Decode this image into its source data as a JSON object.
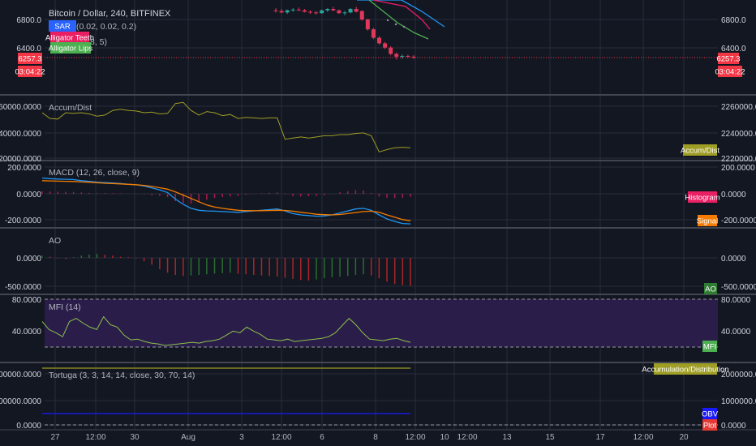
{
  "header": {
    "symbol": "Bitcoin / Dollar, 240, BITFINEX",
    "sar_tag": "SAR",
    "sar_params": "(0.02, 0.02, 0.2)",
    "teeth_tag": "Alligator Teeth",
    "lips_tag": "Alligator Lips",
    "alligator_params": "(13, 8, 5)"
  },
  "price_badges": {
    "last_price": "6257.3",
    "countdown": "03:04:22"
  },
  "colors": {
    "background": "#131722",
    "grid": "#2a2e39",
    "separator": "#434651",
    "up": "#26a69a",
    "down": "#ef5350",
    "candle_down": "#e0375a",
    "price_tag": "#f23645",
    "sar_tag": "#2962ff",
    "teeth": "#e91e63",
    "lips": "#4caf50",
    "jaw": "#2196f3",
    "accdist": "#9e9d24",
    "macd": "#2196f3",
    "signal": "#f57c00",
    "histogram": "#e91e63",
    "ao": "#2e7d32",
    "mfi": "#8bc34a",
    "mfi_band": "#2b1d4a",
    "obv": "#1a1aff",
    "plot": "#e53935"
  },
  "panes": {
    "price": {
      "right_ticks": [
        "6800.0",
        "6400.0"
      ],
      "left_ticks": [
        "6800.0",
        "6400.0"
      ]
    },
    "accdist": {
      "label": "Accum/Dist",
      "tag": "Accum/Dist",
      "ticks": [
        "2260000.0000",
        "2240000.0000",
        "2220000.0000"
      ]
    },
    "macd": {
      "label": "MACD (12, 26, close, 9)",
      "tags": {
        "histogram": "Histogram",
        "signal": "Signal"
      },
      "ticks": [
        "200.0000",
        "0.0000",
        "-200.0000"
      ]
    },
    "ao": {
      "label": "AO",
      "tag": "AO",
      "ticks": [
        "0.0000",
        "-500.0000"
      ]
    },
    "mfi": {
      "label": "MFI (14)",
      "tag": "MFI",
      "ticks": [
        "80.0000",
        "40.0000"
      ]
    },
    "tortuga": {
      "label": "Tortuga (3, 3, 14, 14, close, 30, 70, 14)",
      "tags": {
        "accumulation": "Accumulation/Distribution",
        "obv": "OBV",
        "plot": "Plot"
      },
      "ticks": [
        "2000000.0000",
        "1000000.0000",
        "0.0000"
      ]
    }
  },
  "x_axis": {
    "labels": [
      "27",
      "12:00",
      "30",
      "Aug",
      "3",
      "12:00",
      "6",
      "8",
      "12:00",
      "10",
      "12:00",
      "13",
      "15",
      "17",
      "12:00",
      "20"
    ]
  },
  "chart_data": [
    {
      "type": "candlestick",
      "title": "Bitcoin / Dollar, 240, BITFINEX",
      "ylim": [
        6200,
        7000
      ],
      "series": [
        {
          "name": "Price",
          "ohlc_visible_end": [
            [
              6930,
              6960,
              6900,
              6920
            ],
            [
              6920,
              6950,
              6890,
              6900
            ],
            [
              6900,
              6940,
              6880,
              6930
            ],
            [
              6930,
              6960,
              6910,
              6940
            ],
            [
              6940,
              6970,
              6920,
              6930
            ],
            [
              6930,
              6950,
              6900,
              6910
            ],
            [
              6910,
              6930,
              6880,
              6900
            ],
            [
              6900,
              6920,
              6870,
              6890
            ],
            [
              6890,
              6940,
              6880,
              6930
            ],
            [
              6930,
              6960,
              6910,
              6950
            ],
            [
              6950,
              6980,
              6920,
              6930
            ],
            [
              6930,
              6940,
              6880,
              6890
            ],
            [
              6890,
              6920,
              6860,
              6900
            ],
            [
              6900,
              6960,
              6890,
              6950
            ],
            [
              6950,
              6980,
              6900,
              6910
            ],
            [
              6920,
              6930,
              6780,
              6800
            ],
            [
              6800,
              6810,
              6640,
              6660
            ],
            [
              6660,
              6680,
              6520,
              6540
            ],
            [
              6540,
              6560,
              6440,
              6460
            ],
            [
              6460,
              6480,
              6380,
              6400
            ],
            [
              6400,
              6420,
              6290,
              6310
            ],
            [
              6310,
              6330,
              6230,
              6270
            ],
            [
              6270,
              6300,
              6240,
              6280
            ],
            [
              6280,
              6300,
              6250,
              6270
            ],
            [
              6270,
              6290,
              6240,
              6257.3
            ]
          ]
        }
      ],
      "last_price": 6257.3
    },
    {
      "type": "line",
      "title": "Accum/Dist",
      "ylim": [
        2218000,
        2268000
      ],
      "series": [
        {
          "name": "Accum/Dist",
          "values": [
            2256000,
            2251000,
            2250500,
            2256000,
            2255500,
            2256000,
            2255000,
            2253000,
            2254000,
            2258000,
            2259000,
            2258000,
            2257500,
            2256000,
            2256500,
            2255000,
            2255500,
            2264000,
            2265000,
            2258000,
            2254000,
            2257000,
            2256000,
            2253500,
            2254500,
            2251000,
            2252000,
            2251500,
            2251000,
            2251500,
            2251500,
            2233000,
            2234000,
            2235000,
            2234000,
            2235000,
            2236000,
            2236000,
            2237000,
            2237000,
            2238000,
            2238500,
            2236000,
            2222000,
            2224000,
            2225500,
            2226000,
            2225500
          ]
        }
      ]
    },
    {
      "type": "line",
      "title": "MACD (12, 26, close, 9)",
      "ylim": [
        -250,
        220
      ],
      "series": [
        {
          "name": "MACD",
          "values": [
            120,
            115,
            112,
            110,
            108,
            100,
            95,
            88,
            85,
            82,
            78,
            72,
            68,
            60,
            45,
            30,
            10,
            -40,
            -80,
            -110,
            -125,
            -130,
            -132,
            -135,
            -138,
            -140,
            -135,
            -130,
            -125,
            -120,
            -115,
            -130,
            -150,
            -160,
            -165,
            -170,
            -168,
            -160,
            -145,
            -130,
            -115,
            -110,
            -125,
            -160,
            -190,
            -210,
            -225,
            -228
          ]
        },
        {
          "name": "Signal",
          "values": [
            100,
            98,
            96,
            95,
            94,
            90,
            88,
            84,
            80,
            78,
            75,
            72,
            69,
            64,
            56,
            46,
            35,
            15,
            -10,
            -35,
            -60,
            -85,
            -100,
            -110,
            -118,
            -125,
            -128,
            -128,
            -128,
            -127,
            -125,
            -126,
            -132,
            -140,
            -147,
            -155,
            -158,
            -160,
            -157,
            -150,
            -142,
            -135,
            -132,
            -140,
            -160,
            -178,
            -195,
            -205
          ]
        },
        {
          "name": "Histogram",
          "values": [
            20,
            17,
            16,
            15,
            14,
            10,
            7,
            4,
            5,
            4,
            3,
            0,
            -1,
            -4,
            -11,
            -16,
            -25,
            -55,
            -70,
            -75,
            -65,
            -45,
            -32,
            -25,
            -20,
            -15,
            -7,
            -2,
            3,
            7,
            10,
            -4,
            -18,
            -20,
            -18,
            -15,
            -10,
            0,
            12,
            20,
            27,
            25,
            7,
            -20,
            -30,
            -32,
            -30,
            -23
          ]
        }
      ]
    },
    {
      "type": "bar",
      "title": "AO",
      "ylim": [
        -600,
        100
      ],
      "series": [
        {
          "name": "AO",
          "values": [
            40,
            20,
            -10,
            -20,
            10,
            40,
            60,
            70,
            55,
            40,
            20,
            10,
            -10,
            -60,
            -120,
            -200,
            -260,
            -300,
            -320,
            -310,
            -300,
            -290,
            -280,
            -270,
            -260,
            -280,
            -290,
            -300,
            -310,
            -320,
            -330,
            -350,
            -370,
            -390,
            -400,
            -380,
            -360,
            -340,
            -330,
            -320,
            -300,
            -290,
            -310,
            -360,
            -420,
            -460,
            -480,
            -490
          ]
        }
      ]
    },
    {
      "type": "line",
      "title": "MFI (14)",
      "ylim": [
        15,
        85
      ],
      "series": [
        {
          "name": "MFI",
          "values": [
            52,
            42,
            38,
            33,
            52,
            56,
            50,
            45,
            42,
            58,
            48,
            45,
            35,
            29,
            30,
            27,
            25,
            24,
            22,
            23,
            24,
            25,
            26,
            25,
            27,
            28,
            30,
            35,
            40,
            38,
            45,
            40,
            36,
            30,
            29,
            28,
            30,
            27,
            28,
            29,
            30,
            31,
            33,
            38,
            47,
            56,
            48,
            38,
            30,
            29,
            28,
            30,
            31,
            28,
            26
          ]
        }
      ],
      "bands": [
        80,
        20
      ]
    },
    {
      "type": "line",
      "title": "Tortuga (3, 3, 14, 14, close, 30, 70, 14)",
      "ylim": [
        -100000,
        2200000
      ],
      "series": [
        {
          "name": "Accumulation/Distribution",
          "values": [
            2240000,
            2240000
          ]
        },
        {
          "name": "OBV",
          "values": [
            500000,
            500000
          ]
        },
        {
          "name": "Plot",
          "values": [
            0,
            0
          ]
        }
      ]
    }
  ]
}
